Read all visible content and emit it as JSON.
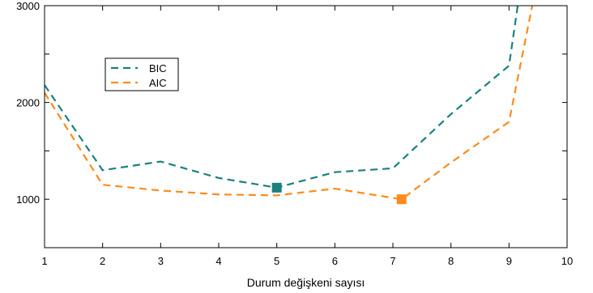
{
  "chart_data": {
    "type": "line",
    "title": "",
    "xlabel": "Durum değişkeni sayısı",
    "ylabel": "",
    "xlim": [
      1,
      10
    ],
    "ylim": [
      500,
      3000
    ],
    "xticks": [
      1,
      2,
      3,
      4,
      5,
      6,
      7,
      8,
      9,
      10
    ],
    "yticks": [
      1000,
      2000,
      3000
    ],
    "legend_position": "upper-left",
    "series": [
      {
        "name": "BIC",
        "color": "#1b8080",
        "x": [
          1,
          2,
          3,
          4,
          5,
          6,
          7,
          8,
          9,
          9.15
        ],
        "y": [
          2180,
          1300,
          1390,
          1220,
          1120,
          1280,
          1320,
          1880,
          2380,
          3000
        ],
        "marker": {
          "x": 5,
          "y": 1120,
          "shape": "square"
        }
      },
      {
        "name": "AIC",
        "color": "#ff8a1e",
        "x": [
          1,
          2,
          3,
          4,
          5,
          6,
          7.15,
          8,
          9,
          9.4
        ],
        "y": [
          2100,
          1150,
          1090,
          1050,
          1040,
          1110,
          1000,
          1380,
          1800,
          3000
        ],
        "marker": {
          "x": 7.15,
          "y": 1000,
          "shape": "square"
        }
      }
    ]
  }
}
